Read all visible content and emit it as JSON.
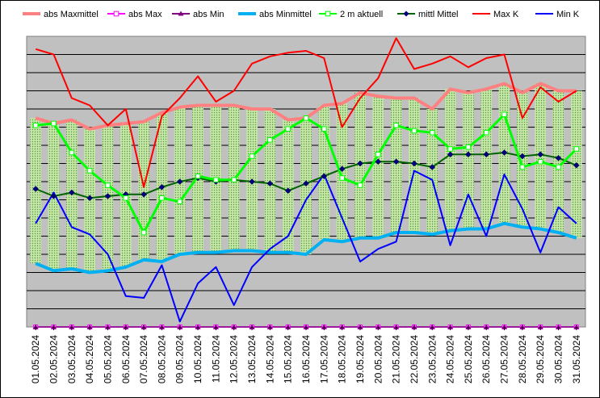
{
  "chart_data": {
    "type": "line",
    "title": "",
    "xlabel": "",
    "ylabel": "",
    "ylim": [
      0,
      16
    ],
    "grid": true,
    "legend_position": "top",
    "categories": [
      "01.05.2024",
      "02.05.2024",
      "03.05.2024",
      "04.05.2024",
      "05.05.2024",
      "06.05.2024",
      "07.05.2024",
      "08.05.2024",
      "09.05.2024",
      "10.05.2024",
      "11.05.2024",
      "12.05.2024",
      "13.05.2024",
      "14.05.2024",
      "15.05.2024",
      "16.05.2024",
      "17.05.2024",
      "18.05.2024",
      "19.05.2024",
      "20.05.2024",
      "21.05.2024",
      "22.05.2024",
      "23.05.2024",
      "24.05.2024",
      "25.05.2024",
      "26.05.2024",
      "27.05.2024",
      "28.05.2024",
      "29.05.2024",
      "30.05.2024",
      "31.05.2024"
    ],
    "series": [
      {
        "name": "abs Maxmittel",
        "color": "#ff8080",
        "values": [
          11.5,
          11.2,
          11.4,
          10.9,
          11.1,
          11.2,
          11.3,
          11.8,
          12.1,
          12.2,
          12.2,
          12.2,
          12.0,
          12.0,
          11.4,
          11.5,
          12.2,
          12.3,
          12.9,
          12.7,
          12.6,
          12.6,
          12.0,
          13.1,
          12.9,
          13.1,
          13.4,
          12.9,
          13.4,
          13.0,
          13.0
        ]
      },
      {
        "name": "abs Max",
        "color": "#ff00ff",
        "values": [
          0,
          0,
          0,
          0,
          0,
          0,
          0,
          0,
          0,
          0,
          0,
          0,
          0,
          0,
          0,
          0,
          0,
          0,
          0,
          0,
          0,
          0,
          0,
          0,
          0,
          0,
          0,
          0,
          0,
          0,
          0
        ]
      },
      {
        "name": "abs Min",
        "color": "#800080",
        "values": [
          0,
          0,
          0,
          0,
          0,
          0,
          0,
          0,
          0,
          0,
          0,
          0,
          0,
          0,
          0,
          0,
          0,
          0,
          0,
          0,
          0,
          0,
          0,
          0,
          0,
          0,
          0,
          0,
          0,
          0,
          0
        ]
      },
      {
        "name": "abs Minmittel",
        "color": "#00b0f0",
        "values": [
          3.5,
          3.1,
          3.2,
          3.0,
          3.1,
          3.3,
          3.7,
          3.6,
          4.0,
          4.1,
          4.1,
          4.2,
          4.2,
          4.1,
          4.1,
          4.0,
          4.8,
          4.7,
          4.9,
          4.9,
          5.2,
          5.2,
          5.1,
          5.3,
          5.4,
          5.4,
          5.7,
          5.5,
          5.4,
          5.2,
          4.9
        ]
      },
      {
        "name": "2 m aktuell",
        "color": "#00ff00",
        "values": [
          11.1,
          11.2,
          9.6,
          8.6,
          7.8,
          7.1,
          5.2,
          7.1,
          6.9,
          8.3,
          8.1,
          8.1,
          9.4,
          10.3,
          10.9,
          11.5,
          10.9,
          8.2,
          7.8,
          9.5,
          11.1,
          10.8,
          10.7,
          9.8,
          9.9,
          10.7,
          11.7,
          8.8,
          9.1,
          8.8,
          9.8
        ]
      },
      {
        "name": "mittl Mittel",
        "color": "#006400",
        "values": [
          7.6,
          7.2,
          7.4,
          7.1,
          7.2,
          7.3,
          7.3,
          7.7,
          8.0,
          8.2,
          8.0,
          8.1,
          8.0,
          7.9,
          7.5,
          7.9,
          8.3,
          8.7,
          9.0,
          9.1,
          9.1,
          9.0,
          8.8,
          9.5,
          9.5,
          9.5,
          9.6,
          9.4,
          9.5,
          9.3,
          8.9
        ]
      },
      {
        "name": "Max K",
        "color": "#ff0000",
        "values": [
          15.3,
          15.0,
          12.6,
          12.2,
          11.1,
          12.0,
          7.7,
          11.6,
          12.6,
          13.8,
          12.4,
          13.0,
          14.5,
          14.9,
          15.1,
          15.2,
          14.8,
          11.0,
          12.6,
          13.7,
          15.9,
          14.2,
          14.5,
          14.9,
          14.3,
          14.8,
          15.0,
          11.5,
          13.2,
          12.4,
          13.0
        ]
      },
      {
        "name": "Min K",
        "color": "#0000ff",
        "values": [
          5.7,
          7.4,
          5.5,
          5.1,
          4.0,
          1.7,
          1.6,
          3.4,
          0.3,
          2.4,
          3.3,
          1.2,
          3.3,
          4.3,
          5.0,
          7.0,
          8.4,
          6.0,
          3.6,
          4.3,
          4.7,
          8.6,
          8.1,
          4.5,
          7.3,
          5.0,
          8.4,
          6.5,
          4.1,
          6.6,
          5.7
        ]
      }
    ]
  }
}
